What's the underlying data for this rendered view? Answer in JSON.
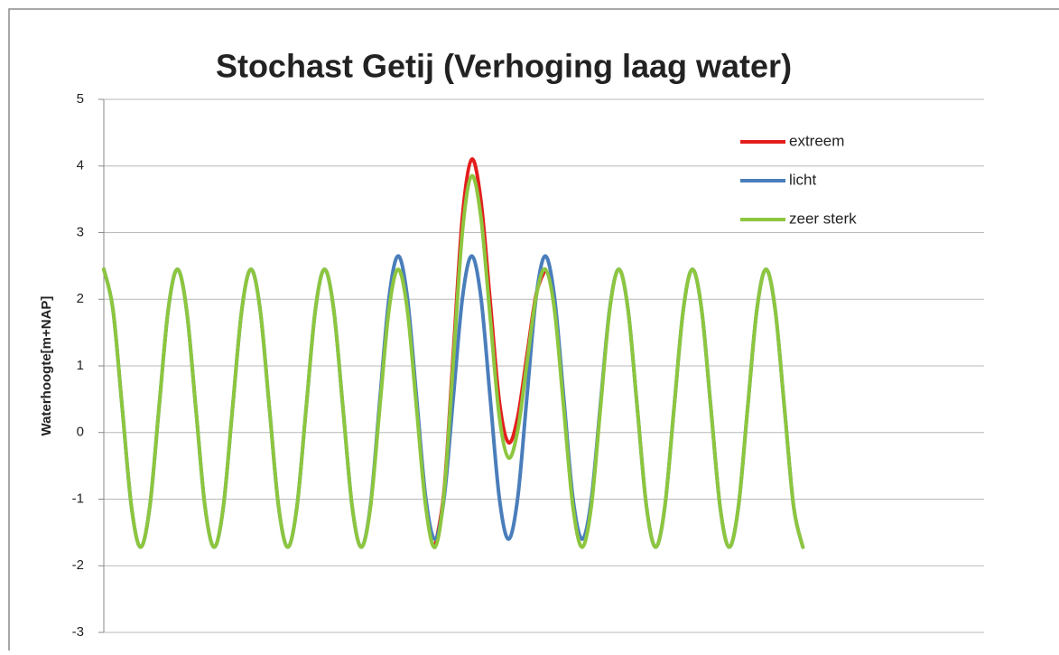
{
  "chart_data": {
    "type": "line",
    "title": "Stochast Getij (Verhoging laag water)",
    "y_label": "Waterhoogte[m+NAP]",
    "ylim": [
      -3,
      5
    ],
    "yticks": [
      -3,
      -2,
      -1,
      0,
      1,
      2,
      3,
      4,
      5
    ],
    "grid": true,
    "legend": "upper right",
    "series": [
      {
        "name": "extreem",
        "color": "#e41d1d",
        "values": [
          null,
          null,
          null,
          null,
          null,
          null,
          null,
          null,
          null,
          null,
          null,
          null,
          null,
          null,
          null,
          null,
          null,
          null,
          null,
          null,
          null,
          null,
          null,
          null,
          null,
          null,
          null,
          null,
          null,
          null,
          null,
          null,
          null,
          null,
          null,
          null,
          -1.72,
          -0.87,
          1.19,
          3.25,
          4.1,
          3.48,
          1.98,
          0.47,
          -0.15,
          0.23,
          1.15,
          2.07,
          2.45,
          null,
          null,
          null,
          null,
          null,
          null,
          null,
          null,
          null,
          null,
          null,
          null,
          null,
          null,
          null,
          null,
          null,
          null,
          null,
          null,
          null,
          null,
          null,
          null,
          null,
          null,
          null,
          null
        ]
      },
      {
        "name": "licht",
        "color": "#4a7ebb",
        "values": [
          2.45,
          1.84,
          0.37,
          -1.11,
          -1.72,
          -1.11,
          0.37,
          1.84,
          2.45,
          1.84,
          0.37,
          -1.11,
          -1.72,
          -1.11,
          0.37,
          1.84,
          2.45,
          1.84,
          0.37,
          -1.11,
          -1.72,
          -1.11,
          0.37,
          1.84,
          2.45,
          1.84,
          0.37,
          -1.11,
          -1.72,
          -1.08,
          0.47,
          2.01,
          2.65,
          2.03,
          0.53,
          -0.98,
          -1.6,
          -0.98,
          0.53,
          2.03,
          2.65,
          2.03,
          0.53,
          -0.98,
          -1.6,
          -0.98,
          0.53,
          2.03,
          2.65,
          2.03,
          0.53,
          -0.98,
          -1.6,
          -1.01,
          0.43,
          1.86,
          2.45,
          1.84,
          0.37,
          -1.11,
          -1.72,
          -1.11,
          0.37,
          1.84,
          2.45,
          1.84,
          0.37,
          -1.11,
          -1.72,
          -1.11,
          0.37,
          1.84,
          2.45,
          1.84,
          0.37,
          -1.11,
          -1.72
        ]
      },
      {
        "name": "zeer sterk",
        "color": "#8dc63f",
        "values": [
          2.45,
          1.84,
          0.37,
          -1.11,
          -1.72,
          -1.11,
          0.37,
          1.84,
          2.45,
          1.84,
          0.37,
          -1.11,
          -1.72,
          -1.11,
          0.37,
          1.84,
          2.45,
          1.84,
          0.37,
          -1.11,
          -1.72,
          -1.11,
          0.37,
          1.84,
          2.45,
          1.84,
          0.37,
          -1.11,
          -1.72,
          -1.11,
          0.37,
          1.84,
          2.45,
          1.84,
          0.37,
          -1.11,
          -1.72,
          -0.9,
          1.07,
          3.03,
          3.85,
          3.23,
          1.74,
          0.24,
          -0.38,
          0.03,
          1.04,
          2.04,
          2.45,
          1.84,
          0.37,
          -1.11,
          -1.72,
          -1.11,
          0.37,
          1.84,
          2.45,
          1.84,
          0.37,
          -1.11,
          -1.72,
          -1.11,
          0.37,
          1.84,
          2.45,
          1.84,
          0.37,
          -1.11,
          -1.72,
          -1.11,
          0.37,
          1.84,
          2.45,
          1.84,
          0.37,
          -1.11,
          -1.72
        ]
      }
    ]
  }
}
